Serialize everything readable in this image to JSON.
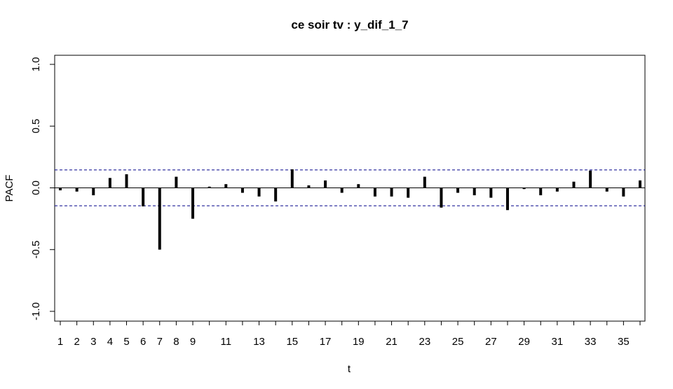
{
  "chart_data": {
    "type": "bar",
    "title": "ce soir tv : y_dif_1_7",
    "xlabel": "t",
    "ylabel": "PACF",
    "ylim": [
      -1.0,
      1.0
    ],
    "xlim": [
      1,
      36
    ],
    "y_ticks": [
      "-1.0",
      "-0.5",
      "0.0",
      "0.5",
      "1.0"
    ],
    "y_tick_values": [
      -1.0,
      -0.5,
      0.0,
      0.5,
      1.0
    ],
    "x_tick_values": [
      1,
      2,
      3,
      4,
      5,
      6,
      7,
      8,
      9,
      11,
      13,
      15,
      17,
      19,
      21,
      23,
      25,
      27,
      29,
      31,
      33,
      35
    ],
    "x_ticks": [
      "1",
      "2",
      "3",
      "4",
      "5",
      "6",
      "7",
      "8",
      "9",
      "11",
      "13",
      "15",
      "17",
      "19",
      "21",
      "23",
      "25",
      "27",
      "29",
      "31",
      "33",
      "35"
    ],
    "confidence_bound": 0.145,
    "series": [
      {
        "lags": [
          1,
          2,
          3,
          4,
          5,
          6,
          7,
          8,
          9,
          10,
          11,
          12,
          13,
          14,
          15,
          16,
          17,
          18,
          19,
          20,
          21,
          22,
          23,
          24,
          25,
          26,
          27,
          28,
          29,
          30,
          31,
          32,
          33,
          34,
          35,
          36
        ],
        "values": [
          -0.02,
          -0.03,
          -0.06,
          0.08,
          0.11,
          -0.15,
          -0.5,
          0.09,
          -0.25,
          0.01,
          0.03,
          -0.04,
          -0.07,
          -0.11,
          0.15,
          0.02,
          0.06,
          -0.04,
          0.03,
          -0.07,
          -0.07,
          -0.08,
          0.09,
          -0.16,
          -0.04,
          -0.06,
          -0.08,
          -0.18,
          -0.01,
          -0.06,
          -0.03,
          0.05,
          0.14,
          -0.03,
          -0.07,
          0.06
        ]
      }
    ],
    "colors": {
      "bar": "#000000",
      "bound": "#00008B",
      "axis": "#000000"
    },
    "grid": false
  }
}
